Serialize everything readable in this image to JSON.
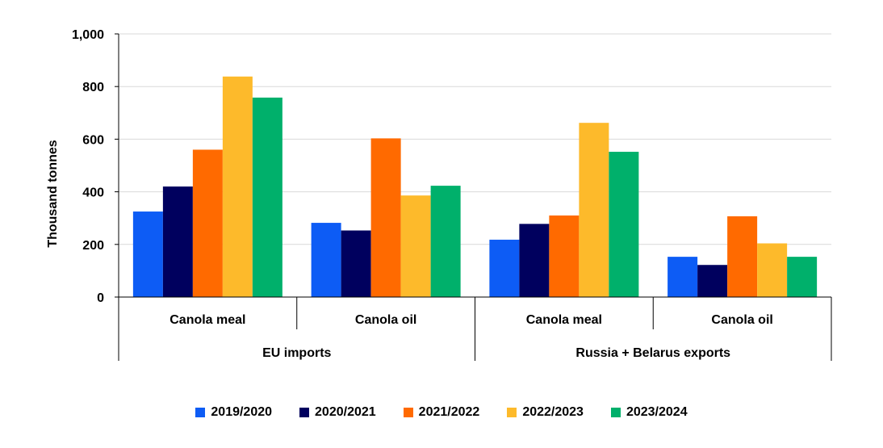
{
  "chart_data": {
    "type": "bar",
    "title": "",
    "ylabel": "Thousand tonnes",
    "ylim": [
      0,
      1000
    ],
    "yticks": [
      0,
      200,
      400,
      600,
      800,
      1000
    ],
    "ytick_labels": [
      "0",
      "200",
      "400",
      "600",
      "800",
      "1,000"
    ],
    "grid": true,
    "legend_position": "bottom",
    "groups": [
      {
        "label": "EU imports",
        "categories": [
          "Canola meal",
          "Canola oil"
        ]
      },
      {
        "label": "Russia + Belarus exports",
        "categories": [
          "Canola meal",
          "Canola oil"
        ]
      }
    ],
    "categories": [
      "Canola meal",
      "Canola oil",
      "Canola meal",
      "Canola oil"
    ],
    "series": [
      {
        "name": "2019/2020",
        "color": "#0d5cf5",
        "values": [
          325,
          282,
          218,
          153
        ]
      },
      {
        "name": "2020/2021",
        "color": "#00005e",
        "values": [
          420,
          253,
          278,
          122
        ]
      },
      {
        "name": "2021/2022",
        "color": "#ff6a00",
        "values": [
          560,
          603,
          310,
          307
        ]
      },
      {
        "name": "2022/2023",
        "color": "#fdba2b",
        "values": [
          838,
          386,
          662,
          204
        ]
      },
      {
        "name": "2023/2024",
        "color": "#00b06b",
        "values": [
          758,
          423,
          552,
          153
        ]
      }
    ]
  }
}
